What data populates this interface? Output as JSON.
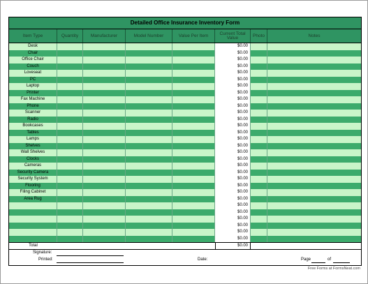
{
  "title": "Detailed Office Insurance Inventory Form",
  "headers": [
    "Item Type",
    "Quantity",
    "Manufacturer",
    "Model Number",
    "Value Per Item",
    "Current Total Value",
    "Photo",
    "Notes"
  ],
  "items": [
    "Desk",
    "Chair",
    "Office Chair",
    "Couch",
    "Loveseat",
    "PC",
    "Laptop",
    "Printer",
    "Fax Machine",
    "Phone",
    "Scanner",
    "Radio",
    "Bookcases",
    "Tables",
    "Lamps",
    "Shelves",
    "Wall Shelves",
    "Clocks",
    "Cameras",
    "Security Camera",
    "Security System",
    "Flooring",
    "Filing Cabinet",
    "Area Rug",
    "",
    "",
    "",
    "",
    "",
    ""
  ],
  "default_value": "$0.00",
  "total_label": "Total",
  "total_value": "$0.00",
  "footer": {
    "signature_label": "Signature:",
    "printed_label": "Printed:",
    "date_label": "Date:",
    "page_label": "Page",
    "of_label": "of"
  },
  "credit": "Free Forms at FormsNeat.com",
  "colors": {
    "header": "#2f9462",
    "row_light": "#c9f5c9",
    "row_dark": "#3cab6c"
  }
}
